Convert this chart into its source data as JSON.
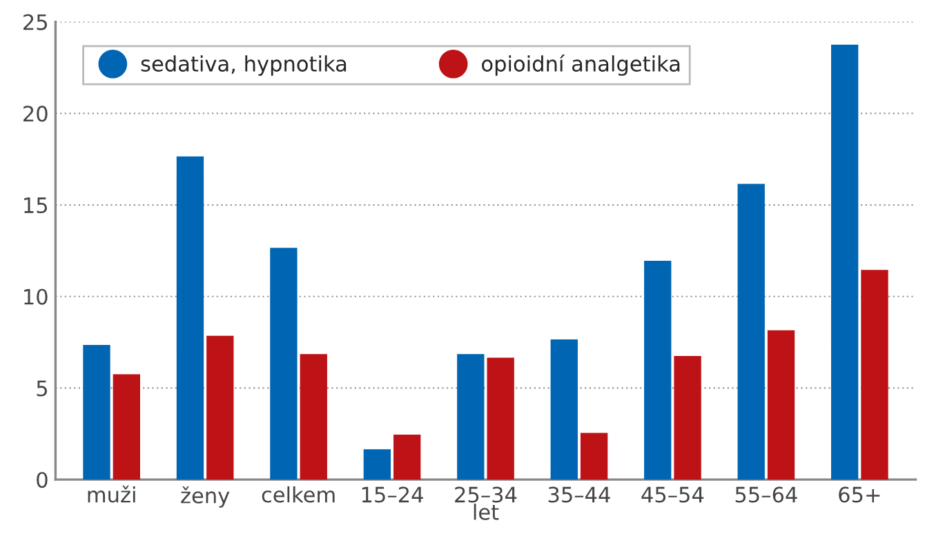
{
  "chart_data": {
    "type": "bar",
    "xlabel": "let",
    "categories": [
      "muži",
      "ženy",
      "celkem",
      "15–24",
      "25–34",
      "35–44",
      "45–54",
      "55–64",
      "65+"
    ],
    "series": [
      {
        "name": "sedativa, hypnotika",
        "color": "#0066b3",
        "values": [
          7.3,
          17.6,
          12.6,
          1.6,
          6.8,
          7.6,
          11.9,
          16.1,
          23.7
        ]
      },
      {
        "name": "opioidní analgetika",
        "color": "#be1316",
        "values": [
          5.7,
          7.8,
          6.8,
          2.4,
          6.6,
          2.5,
          6.7,
          8.1,
          11.4
        ]
      }
    ],
    "ylim": [
      0,
      25
    ],
    "yticks": [
      0,
      5,
      10,
      15,
      20,
      25
    ],
    "grid": "y",
    "legend": "top left"
  }
}
